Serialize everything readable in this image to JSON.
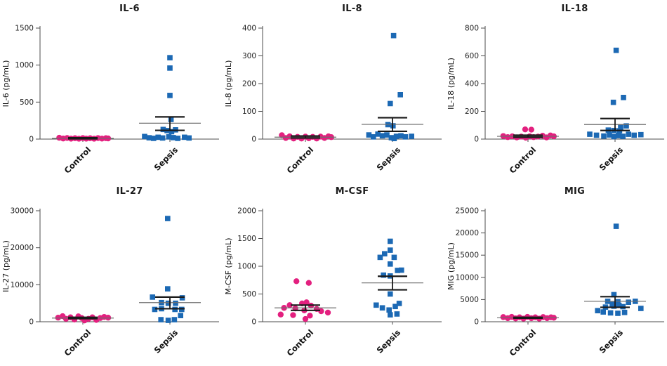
{
  "figure": {
    "description": "Six-panel dot plot figure comparing cytokine plasma levels between Control and Sepsis groups, mean with SEM error bars",
    "panels_grid": "2 rows x 3 columns",
    "group_colors": {
      "control": "#E3207F",
      "sepsis": "#1C69B4"
    },
    "marker_shapes": {
      "control": "circle",
      "sepsis": "square"
    }
  },
  "chart_data": [
    {
      "id": "il-6",
      "type": "scatter",
      "title": "IL-6",
      "ylabel": "IL-6 (pg/mL)",
      "xlabel": "",
      "ylim": [
        0,
        1500
      ],
      "yticks": [
        0,
        500,
        1000,
        1500
      ],
      "categories": [
        "Control",
        "Sepsis"
      ],
      "grid": false,
      "legend": "none",
      "groups": [
        {
          "name": "Control",
          "marker": "circle",
          "color": "#E3207F",
          "mean": 10,
          "err_low": 5,
          "err_high": 18,
          "points": [
            [
              -0.42,
              18
            ],
            [
              -0.35,
              8
            ],
            [
              -0.28,
              15
            ],
            [
              -0.21,
              6
            ],
            [
              -0.14,
              12
            ],
            [
              -0.07,
              5
            ],
            [
              0.0,
              14
            ],
            [
              0.06,
              6
            ],
            [
              0.13,
              12
            ],
            [
              0.2,
              5
            ],
            [
              0.27,
              14
            ],
            [
              0.34,
              7
            ],
            [
              0.41,
              12
            ],
            [
              0.45,
              9
            ]
          ]
        },
        {
          "name": "Sepsis",
          "marker": "square",
          "color": "#1C69B4",
          "mean": 215,
          "err_low": 118,
          "err_high": 300,
          "points": [
            [
              0.0,
              1100
            ],
            [
              0.0,
              960
            ],
            [
              0.0,
              590
            ],
            [
              0.02,
              265
            ],
            [
              -0.12,
              130
            ],
            [
              -0.05,
              115
            ],
            [
              0.03,
              100
            ],
            [
              0.1,
              125
            ],
            [
              -0.45,
              35
            ],
            [
              -0.37,
              18
            ],
            [
              -0.29,
              10
            ],
            [
              -0.21,
              25
            ],
            [
              -0.13,
              15
            ],
            [
              -0.02,
              30
            ],
            [
              0.06,
              20
            ],
            [
              0.14,
              10
            ],
            [
              0.26,
              25
            ],
            [
              0.34,
              15
            ]
          ]
        }
      ]
    },
    {
      "id": "il-8",
      "type": "scatter",
      "title": "IL-8",
      "ylabel": "IL-8 (pg/mL)",
      "xlabel": "",
      "ylim": [
        0,
        400
      ],
      "yticks": [
        0,
        100,
        200,
        300,
        400
      ],
      "categories": [
        "Control",
        "Sepsis"
      ],
      "grid": false,
      "legend": "none",
      "groups": [
        {
          "name": "Control",
          "marker": "circle",
          "color": "#E3207F",
          "mean": 7,
          "err_low": 4,
          "err_high": 11,
          "points": [
            [
              -0.42,
              14
            ],
            [
              -0.35,
              4
            ],
            [
              -0.28,
              10
            ],
            [
              -0.21,
              2
            ],
            [
              -0.14,
              8
            ],
            [
              -0.07,
              2
            ],
            [
              0.0,
              9
            ],
            [
              0.06,
              3
            ],
            [
              0.13,
              8
            ],
            [
              0.2,
              2
            ],
            [
              0.27,
              9
            ],
            [
              0.34,
              4
            ],
            [
              0.41,
              10
            ],
            [
              0.46,
              7
            ]
          ]
        },
        {
          "name": "Sepsis",
          "marker": "square",
          "color": "#1C69B4",
          "mean": 53,
          "err_low": 28,
          "err_high": 77,
          "points": [
            [
              0.02,
              373
            ],
            [
              0.14,
              160
            ],
            [
              -0.04,
              128
            ],
            [
              -0.08,
              52
            ],
            [
              0.01,
              48
            ],
            [
              -0.42,
              15
            ],
            [
              -0.34,
              8
            ],
            [
              -0.26,
              18
            ],
            [
              -0.18,
              12
            ],
            [
              -0.1,
              15
            ],
            [
              -0.02,
              5
            ],
            [
              0.03,
              2
            ],
            [
              0.07,
              10
            ],
            [
              0.15,
              12
            ],
            [
              0.23,
              8
            ],
            [
              0.34,
              10
            ]
          ]
        }
      ]
    },
    {
      "id": "il-18",
      "type": "scatter",
      "title": "IL-18",
      "ylabel": "IL-18 (pg/mL)",
      "xlabel": "",
      "ylim": [
        0,
        800
      ],
      "yticks": [
        0,
        200,
        400,
        600,
        800
      ],
      "categories": [
        "Control",
        "Sepsis"
      ],
      "grid": false,
      "legend": "none",
      "groups": [
        {
          "name": "Control",
          "marker": "circle",
          "color": "#E3207F",
          "mean": 20,
          "err_low": 14,
          "err_high": 28,
          "points": [
            [
              -0.05,
              70
            ],
            [
              0.06,
              68
            ],
            [
              -0.44,
              22
            ],
            [
              -0.36,
              14
            ],
            [
              -0.28,
              20
            ],
            [
              -0.2,
              12
            ],
            [
              -0.12,
              18
            ],
            [
              -0.04,
              10
            ],
            [
              0.03,
              20
            ],
            [
              0.1,
              14
            ],
            [
              0.18,
              18
            ],
            [
              0.26,
              24
            ],
            [
              0.33,
              12
            ],
            [
              0.4,
              26
            ],
            [
              0.46,
              20
            ]
          ]
        },
        {
          "name": "Sepsis",
          "marker": "square",
          "color": "#1C69B4",
          "mean": 105,
          "err_low": 62,
          "err_high": 148,
          "points": [
            [
              0.02,
              640
            ],
            [
              0.15,
              300
            ],
            [
              -0.03,
              265
            ],
            [
              0.1,
              85
            ],
            [
              0.2,
              95
            ],
            [
              -0.12,
              65
            ],
            [
              -0.02,
              62
            ],
            [
              0.08,
              60
            ],
            [
              -0.45,
              35
            ],
            [
              -0.33,
              28
            ],
            [
              -0.2,
              22
            ],
            [
              -0.1,
              30
            ],
            [
              -0.02,
              18
            ],
            [
              0.06,
              25
            ],
            [
              0.14,
              20
            ],
            [
              0.24,
              35
            ],
            [
              0.34,
              28
            ],
            [
              0.46,
              32
            ]
          ]
        }
      ]
    },
    {
      "id": "il-27",
      "type": "scatter",
      "title": "IL-27",
      "ylabel": "IL-27 (pg/mL)",
      "xlabel": "",
      "ylim": [
        0,
        30000
      ],
      "yticks": [
        0,
        10000,
        20000,
        30000
      ],
      "categories": [
        "Control",
        "Sepsis"
      ],
      "grid": false,
      "legend": "none",
      "groups": [
        {
          "name": "Control",
          "marker": "circle",
          "color": "#E3207F",
          "mean": 1000,
          "err_low": 850,
          "err_high": 1200,
          "points": [
            [
              -0.44,
              1100
            ],
            [
              -0.36,
              1500
            ],
            [
              -0.3,
              800
            ],
            [
              -0.22,
              1200
            ],
            [
              -0.15,
              600
            ],
            [
              -0.08,
              1450
            ],
            [
              -0.02,
              1000
            ],
            [
              0.03,
              350
            ],
            [
              0.1,
              800
            ],
            [
              0.17,
              1200
            ],
            [
              0.24,
              500
            ],
            [
              0.31,
              1000
            ],
            [
              0.38,
              1300
            ],
            [
              0.45,
              1100
            ]
          ]
        },
        {
          "name": "Sepsis",
          "marker": "square",
          "color": "#1C69B4",
          "mean": 5180,
          "err_low": 3520,
          "err_high": 6670,
          "points": [
            [
              -0.04,
              27900
            ],
            [
              -0.04,
              8900
            ],
            [
              -0.31,
              6660
            ],
            [
              0.22,
              6470
            ],
            [
              -0.15,
              5180
            ],
            [
              -0.03,
              5000
            ],
            [
              0.1,
              5000
            ],
            [
              -0.27,
              3330
            ],
            [
              -0.15,
              3520
            ],
            [
              0.09,
              3330
            ],
            [
              0.21,
              3330
            ],
            [
              0.19,
              1670
            ],
            [
              -0.16,
              560
            ],
            [
              -0.03,
              370
            ],
            [
              0.08,
              560
            ]
          ]
        }
      ]
    },
    {
      "id": "m-csf",
      "type": "scatter",
      "title": "M-CSF",
      "ylabel": "M-CSF (pg/mL)",
      "xlabel": "",
      "ylim": [
        0,
        2000
      ],
      "yticks": [
        0,
        500,
        1000,
        1500,
        2000
      ],
      "categories": [
        "Control",
        "Sepsis"
      ],
      "grid": false,
      "legend": "none",
      "groups": [
        {
          "name": "Control",
          "marker": "circle",
          "color": "#E3207F",
          "mean": 250,
          "err_low": 205,
          "err_high": 300,
          "points": [
            [
              -0.16,
              730
            ],
            [
              0.06,
              700
            ],
            [
              0.02,
              350
            ],
            [
              -0.06,
              330
            ],
            [
              -0.28,
              300
            ],
            [
              0.1,
              290
            ],
            [
              -0.38,
              250
            ],
            [
              -0.18,
              240
            ],
            [
              0.2,
              230
            ],
            [
              -0.02,
              205
            ],
            [
              0.28,
              190
            ],
            [
              0.4,
              165
            ],
            [
              -0.44,
              130
            ],
            [
              -0.22,
              120
            ],
            [
              0.08,
              110
            ],
            [
              0.0,
              50
            ]
          ]
        },
        {
          "name": "Sepsis",
          "marker": "square",
          "color": "#1C69B4",
          "mean": 700,
          "err_low": 575,
          "err_high": 820,
          "points": [
            [
              -0.04,
              1450
            ],
            [
              -0.04,
              1290
            ],
            [
              -0.22,
              1160
            ],
            [
              -0.14,
              1225
            ],
            [
              0.03,
              1160
            ],
            [
              -0.04,
              1040
            ],
            [
              0.09,
              925
            ],
            [
              0.16,
              930
            ],
            [
              -0.16,
              840
            ],
            [
              -0.04,
              825
            ],
            [
              -0.04,
              500
            ],
            [
              -0.29,
              300
            ],
            [
              -0.18,
              250
            ],
            [
              -0.06,
              212
            ],
            [
              0.05,
              275
            ],
            [
              0.12,
              330
            ],
            [
              -0.04,
              125
            ],
            [
              0.08,
              140
            ]
          ]
        }
      ]
    },
    {
      "id": "mig",
      "type": "scatter",
      "title": "MIG",
      "ylabel": "MIG (pg/mL)",
      "xlabel": "",
      "ylim": [
        0,
        25000
      ],
      "yticks": [
        0,
        5000,
        10000,
        15000,
        20000,
        25000
      ],
      "categories": [
        "Control",
        "Sepsis"
      ],
      "grid": false,
      "legend": "none",
      "groups": [
        {
          "name": "Control",
          "marker": "circle",
          "color": "#E3207F",
          "mean": 900,
          "err_low": 800,
          "err_high": 1000,
          "points": [
            [
              -0.44,
              1050
            ],
            [
              -0.36,
              800
            ],
            [
              -0.29,
              1100
            ],
            [
              -0.22,
              750
            ],
            [
              -0.15,
              1000
            ],
            [
              -0.08,
              700
            ],
            [
              -0.01,
              1100
            ],
            [
              0.06,
              800
            ],
            [
              0.13,
              1000
            ],
            [
              0.2,
              700
            ],
            [
              0.27,
              1050
            ],
            [
              0.34,
              800
            ],
            [
              0.41,
              1000
            ],
            [
              0.46,
              900
            ]
          ]
        },
        {
          "name": "Sepsis",
          "marker": "square",
          "color": "#1C69B4",
          "mean": 4600,
          "err_low": 3250,
          "err_high": 5650,
          "points": [
            [
              0.02,
              21500
            ],
            [
              -0.02,
              6100
            ],
            [
              -0.13,
              4600
            ],
            [
              0.05,
              4500
            ],
            [
              0.24,
              4400
            ],
            [
              0.36,
              4600
            ],
            [
              -0.05,
              3900
            ],
            [
              0.07,
              3700
            ],
            [
              -0.02,
              3500
            ],
            [
              -0.17,
              3300
            ],
            [
              0.14,
              3400
            ],
            [
              -0.31,
              2500
            ],
            [
              -0.21,
              2200
            ],
            [
              -0.08,
              2000
            ],
            [
              0.05,
              1900
            ],
            [
              0.17,
              2100
            ],
            [
              0.46,
              3000
            ]
          ]
        }
      ]
    }
  ]
}
